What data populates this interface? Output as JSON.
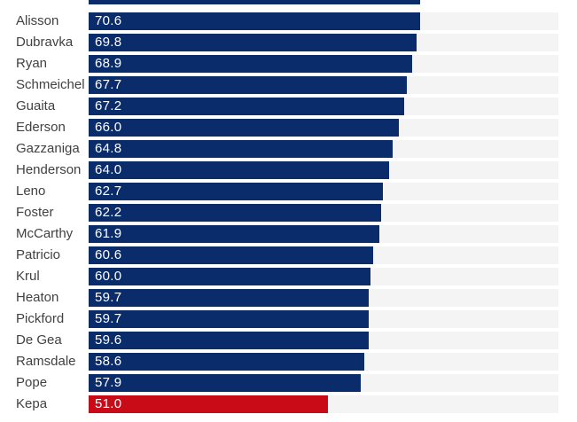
{
  "chart_data": {
    "type": "bar",
    "orientation": "horizontal",
    "title": "",
    "categories": [
      "Alisson",
      "Dubravka",
      "Ryan",
      "Schmeichel",
      "Guaita",
      "Ederson",
      "Gazzaniga",
      "Henderson",
      "Leno",
      "Foster",
      "McCarthy",
      "Patricio",
      "Krul",
      "Heaton",
      "Pickford",
      "De Gea",
      "Ramsdale",
      "Pope",
      "Kepa"
    ],
    "values": [
      70.6,
      69.8,
      68.9,
      67.7,
      67.2,
      66.0,
      64.8,
      64.0,
      62.7,
      62.2,
      61.9,
      60.6,
      60.0,
      59.7,
      59.7,
      59.6,
      58.6,
      57.9,
      51.0
    ],
    "value_labels": [
      "70.6",
      "69.8",
      "68.9",
      "67.7",
      "67.2",
      "66.0",
      "64.8",
      "64.0",
      "62.7",
      "62.2",
      "61.9",
      "60.6",
      "60.0",
      "59.7",
      "59.7",
      "59.6",
      "58.6",
      "57.9",
      "51.0"
    ],
    "xlim": [
      0,
      100
    ],
    "grid": false,
    "legend": null,
    "highlighted_category": "Kepa",
    "highlight_index": 18,
    "cropped_bar_at_top": true,
    "colors": {
      "bar": "#0a2c6a",
      "highlight": "#c90a17",
      "track": "#f4f4f4",
      "label_text": "#414141",
      "value_text": "#ffffff",
      "background": "#ffffff"
    }
  }
}
